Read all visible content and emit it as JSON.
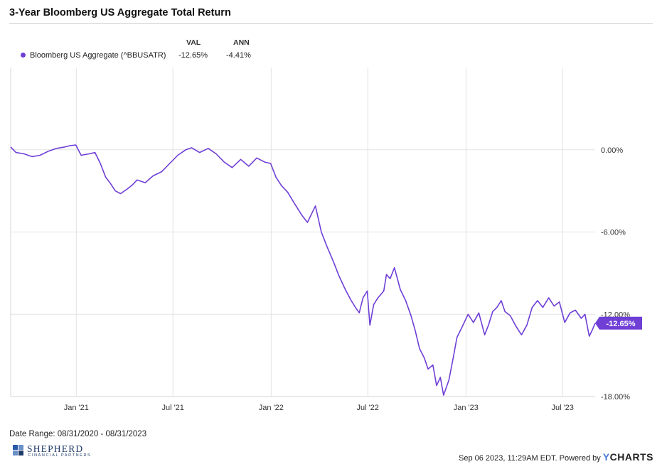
{
  "title": "3-Year Bloomberg US Aggregate Total Return",
  "legend": {
    "col_val": "VAL",
    "col_ann": "ANN",
    "series_label": "Bloomberg US Aggregate (^BBUSATR)",
    "val": "-12.65%",
    "ann": "-4.41%"
  },
  "colors": {
    "series": "#6f3fd6",
    "grid": "#e3e3e3",
    "axis_text": "#333333"
  },
  "footer": {
    "date_range": "Date Range: 08/31/2020 - 08/31/2023",
    "logo_word": "SHEPHERD",
    "logo_sub": "FINANCIAL PARTNERS",
    "timestamp": "Sep 06 2023, 11:29AM EDT.",
    "powered_by": "Powered by",
    "brand_y": "Y",
    "brand_rest": "CHARTS"
  },
  "chart_data": {
    "type": "line",
    "title": "3-Year Bloomberg US Aggregate Total Return",
    "xlabel": "",
    "ylabel": "",
    "x_range": [
      "2020-08-31",
      "2023-08-31"
    ],
    "ylim": [
      -18,
      6
    ],
    "grid": true,
    "y_ticks": [
      {
        "value": 0,
        "label": "0.00%"
      },
      {
        "value": -6,
        "label": "-6.00%"
      },
      {
        "value": -12,
        "label": "-12.00%"
      },
      {
        "value": -18,
        "label": "-18.00%"
      }
    ],
    "x_ticks": [
      {
        "date": "2021-01-01",
        "label": "Jan '21"
      },
      {
        "date": "2021-07-01",
        "label": "Jul '21"
      },
      {
        "date": "2022-01-01",
        "label": "Jan '22"
      },
      {
        "date": "2022-07-01",
        "label": "Jul '22"
      },
      {
        "date": "2023-01-01",
        "label": "Jan '23"
      },
      {
        "date": "2023-07-01",
        "label": "Jul '23"
      }
    ],
    "end_label": "-12.65%",
    "series": [
      {
        "name": "Bloomberg US Aggregate (^BBUSATR)",
        "points": [
          [
            "2020-08-31",
            0.2
          ],
          [
            "2020-09-10",
            -0.2
          ],
          [
            "2020-09-25",
            -0.3
          ],
          [
            "2020-10-10",
            -0.5
          ],
          [
            "2020-10-25",
            -0.4
          ],
          [
            "2020-11-10",
            -0.1
          ],
          [
            "2020-11-25",
            0.1
          ],
          [
            "2020-12-10",
            0.2
          ],
          [
            "2020-12-20",
            0.3
          ],
          [
            "2020-12-31",
            0.35
          ],
          [
            "2021-01-10",
            -0.4
          ],
          [
            "2021-01-25",
            -0.3
          ],
          [
            "2021-02-05",
            -0.2
          ],
          [
            "2021-02-15",
            -1.0
          ],
          [
            "2021-02-25",
            -2.0
          ],
          [
            "2021-03-05",
            -2.4
          ],
          [
            "2021-03-15",
            -3.0
          ],
          [
            "2021-03-25",
            -3.2
          ],
          [
            "2021-04-05",
            -2.9
          ],
          [
            "2021-04-15",
            -2.6
          ],
          [
            "2021-04-25",
            -2.2
          ],
          [
            "2021-05-10",
            -2.4
          ],
          [
            "2021-05-25",
            -1.9
          ],
          [
            "2021-06-10",
            -1.6
          ],
          [
            "2021-06-25",
            -1.0
          ],
          [
            "2021-07-10",
            -0.4
          ],
          [
            "2021-07-25",
            0.0
          ],
          [
            "2021-08-05",
            0.15
          ],
          [
            "2021-08-20",
            -0.2
          ],
          [
            "2021-09-05",
            0.1
          ],
          [
            "2021-09-20",
            -0.3
          ],
          [
            "2021-10-05",
            -0.9
          ],
          [
            "2021-10-20",
            -1.3
          ],
          [
            "2021-11-05",
            -0.7
          ],
          [
            "2021-11-20",
            -1.2
          ],
          [
            "2021-12-05",
            -0.6
          ],
          [
            "2021-12-20",
            -0.9
          ],
          [
            "2021-12-31",
            -1.0
          ],
          [
            "2022-01-10",
            -2.0
          ],
          [
            "2022-01-20",
            -2.6
          ],
          [
            "2022-02-01",
            -3.1
          ],
          [
            "2022-02-15",
            -4.0
          ],
          [
            "2022-02-28",
            -4.8
          ],
          [
            "2022-03-10",
            -5.3
          ],
          [
            "2022-03-25",
            -4.1
          ],
          [
            "2022-04-05",
            -6.0
          ],
          [
            "2022-04-15",
            -7.0
          ],
          [
            "2022-04-28",
            -8.2
          ],
          [
            "2022-05-08",
            -9.2
          ],
          [
            "2022-05-20",
            -10.2
          ],
          [
            "2022-05-31",
            -11.0
          ],
          [
            "2022-06-08",
            -11.5
          ],
          [
            "2022-06-15",
            -11.9
          ],
          [
            "2022-06-22",
            -10.8
          ],
          [
            "2022-06-30",
            -10.3
          ],
          [
            "2022-07-05",
            -12.8
          ],
          [
            "2022-07-12",
            -11.3
          ],
          [
            "2022-07-20",
            -10.8
          ],
          [
            "2022-07-31",
            -10.3
          ],
          [
            "2022-08-05",
            -9.1
          ],
          [
            "2022-08-12",
            -9.4
          ],
          [
            "2022-08-20",
            -8.6
          ],
          [
            "2022-08-31",
            -10.2
          ],
          [
            "2022-09-10",
            -11.0
          ],
          [
            "2022-09-20",
            -12.1
          ],
          [
            "2022-09-28",
            -13.2
          ],
          [
            "2022-10-06",
            -14.5
          ],
          [
            "2022-10-15",
            -15.2
          ],
          [
            "2022-10-22",
            -16.0
          ],
          [
            "2022-10-31",
            -15.7
          ],
          [
            "2022-11-07",
            -17.2
          ],
          [
            "2022-11-14",
            -16.6
          ],
          [
            "2022-11-20",
            -17.9
          ],
          [
            "2022-11-30",
            -16.8
          ],
          [
            "2022-12-08",
            -15.2
          ],
          [
            "2022-12-15",
            -13.7
          ],
          [
            "2022-12-25",
            -12.9
          ],
          [
            "2023-01-05",
            -12.0
          ],
          [
            "2023-01-15",
            -12.6
          ],
          [
            "2023-01-25",
            -11.9
          ],
          [
            "2023-02-05",
            -13.5
          ],
          [
            "2023-02-12",
            -12.8
          ],
          [
            "2023-02-20",
            -11.8
          ],
          [
            "2023-02-28",
            -11.5
          ],
          [
            "2023-03-08",
            -11.0
          ],
          [
            "2023-03-15",
            -11.8
          ],
          [
            "2023-03-25",
            -12.1
          ],
          [
            "2023-04-05",
            -12.9
          ],
          [
            "2023-04-15",
            -13.5
          ],
          [
            "2023-04-25",
            -12.8
          ],
          [
            "2023-05-05",
            -11.5
          ],
          [
            "2023-05-15",
            -11.0
          ],
          [
            "2023-05-25",
            -11.5
          ],
          [
            "2023-06-05",
            -10.8
          ],
          [
            "2023-06-15",
            -11.4
          ],
          [
            "2023-06-25",
            -11.1
          ],
          [
            "2023-07-05",
            -12.6
          ],
          [
            "2023-07-15",
            -11.9
          ],
          [
            "2023-07-25",
            -11.7
          ],
          [
            "2023-08-05",
            -12.3
          ],
          [
            "2023-08-12",
            -12.0
          ],
          [
            "2023-08-20",
            -13.6
          ],
          [
            "2023-08-25",
            -13.2
          ],
          [
            "2023-08-31",
            -12.65
          ]
        ]
      }
    ]
  }
}
